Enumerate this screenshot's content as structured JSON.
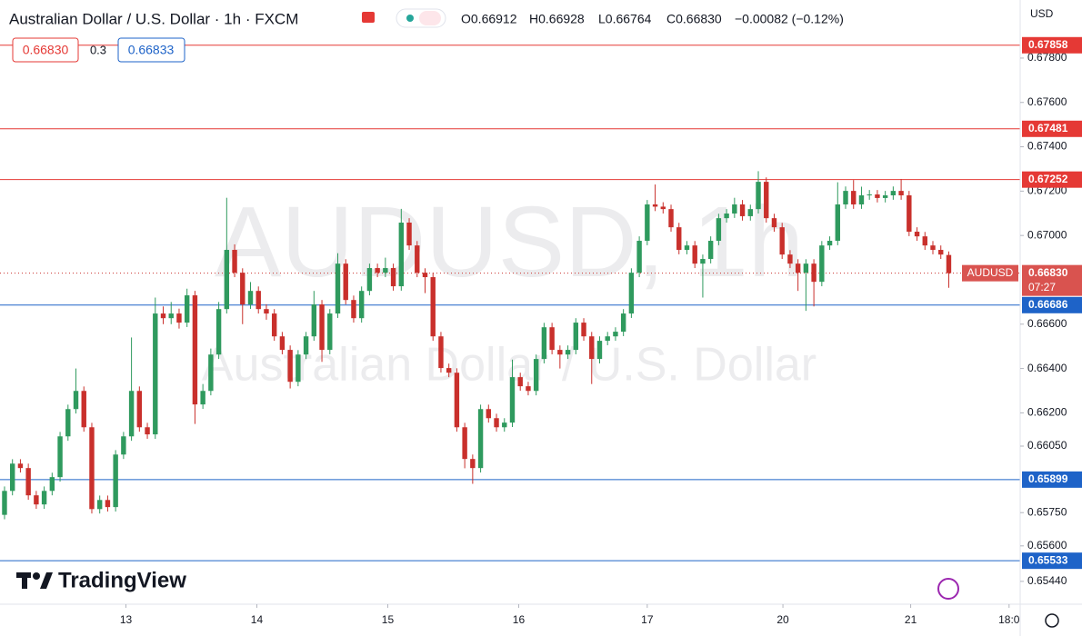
{
  "chart_data": {
    "type": "candlestick",
    "title": "Australian Dollar / U.S. Dollar · 1h · FXCM",
    "ohlc_header": [
      "O0.66912",
      "H0.66928",
      "L0.66764",
      "C0.66830",
      "−0.00082 (−0.12%)"
    ],
    "watermark": [
      "AUDUSD, 1h",
      "Australian Dollar / U.S. Dollar"
    ],
    "sell_price": "0.66830",
    "spread": "0.3",
    "buy_price": "0.66833",
    "currency": "USD",
    "brand": "TradingView",
    "symbol_label": "AUDUSD",
    "countdown": "07:27",
    "current_price": {
      "value": 0.6683,
      "label": "0.66830"
    },
    "up_color": "#2f9a5e",
    "down_color": "#c9302c",
    "candles": [
      [
        0.6574,
        0.65868,
        0.6572,
        0.65848
      ],
      [
        0.65848,
        0.65991,
        0.65828,
        0.65971
      ],
      [
        0.65971,
        0.65991,
        0.65931,
        0.65951
      ],
      [
        0.65951,
        0.65971,
        0.65808,
        0.65828
      ],
      [
        0.65828,
        0.65848,
        0.65767,
        0.65787
      ],
      [
        0.65787,
        0.65868,
        0.65767,
        0.65848
      ],
      [
        0.65848,
        0.6593,
        0.65828,
        0.6591
      ],
      [
        0.6591,
        0.66114,
        0.6589,
        0.66094
      ],
      [
        0.66094,
        0.66237,
        0.66074,
        0.66217
      ],
      [
        0.66217,
        0.664,
        0.66197,
        0.66299
      ],
      [
        0.66299,
        0.66319,
        0.66115,
        0.66135
      ],
      [
        0.66135,
        0.66155,
        0.65746,
        0.65766
      ],
      [
        0.65766,
        0.65827,
        0.65746,
        0.65807
      ],
      [
        0.65807,
        0.65827,
        0.65755,
        0.65775
      ],
      [
        0.65775,
        0.66032,
        0.65755,
        0.66012
      ],
      [
        0.66012,
        0.66114,
        0.65992,
        0.66094
      ],
      [
        0.66094,
        0.6654,
        0.66074,
        0.66299
      ],
      [
        0.66299,
        0.66319,
        0.66115,
        0.66135
      ],
      [
        0.66135,
        0.66155,
        0.66083,
        0.66103
      ],
      [
        0.66103,
        0.6672,
        0.66083,
        0.66648
      ],
      [
        0.66648,
        0.6668,
        0.666,
        0.66627
      ],
      [
        0.66627,
        0.667,
        0.666,
        0.66648
      ],
      [
        0.66648,
        0.6667,
        0.6658,
        0.66607
      ],
      [
        0.66607,
        0.6676,
        0.66587,
        0.6673
      ],
      [
        0.6673,
        0.6675,
        0.6615,
        0.66238
      ],
      [
        0.66238,
        0.6633,
        0.66218,
        0.66299
      ],
      [
        0.66299,
        0.6649,
        0.66279,
        0.66463
      ],
      [
        0.66463,
        0.667,
        0.66443,
        0.66668
      ],
      [
        0.66668,
        0.6717,
        0.66648,
        0.66935
      ],
      [
        0.66935,
        0.6696,
        0.66812,
        0.66832
      ],
      [
        0.66832,
        0.66852,
        0.666,
        0.66689
      ],
      [
        0.66689,
        0.6679,
        0.66669,
        0.6675
      ],
      [
        0.6675,
        0.6677,
        0.66648,
        0.66668
      ],
      [
        0.66668,
        0.6669,
        0.6662,
        0.66648
      ],
      [
        0.66648,
        0.66668,
        0.66525,
        0.66545
      ],
      [
        0.66545,
        0.66565,
        0.66464,
        0.66484
      ],
      [
        0.66484,
        0.66504,
        0.6631,
        0.6634
      ],
      [
        0.6634,
        0.66483,
        0.6632,
        0.66463
      ],
      [
        0.66463,
        0.66565,
        0.66443,
        0.66545
      ],
      [
        0.66545,
        0.6675,
        0.66525,
        0.66689
      ],
      [
        0.66689,
        0.66709,
        0.6643,
        0.66484
      ],
      [
        0.66484,
        0.66668,
        0.66464,
        0.66648
      ],
      [
        0.66648,
        0.6692,
        0.66628,
        0.66873
      ],
      [
        0.66873,
        0.66893,
        0.66689,
        0.66709
      ],
      [
        0.66709,
        0.66729,
        0.66607,
        0.66627
      ],
      [
        0.66627,
        0.6677,
        0.66607,
        0.6675
      ],
      [
        0.6675,
        0.66873,
        0.6673,
        0.66853
      ],
      [
        0.66853,
        0.66873,
        0.66812,
        0.66832
      ],
      [
        0.66832,
        0.669,
        0.66812,
        0.66853
      ],
      [
        0.66853,
        0.66873,
        0.66751,
        0.66771
      ],
      [
        0.66771,
        0.6712,
        0.66751,
        0.67058
      ],
      [
        0.67058,
        0.67078,
        0.66935,
        0.66955
      ],
      [
        0.66955,
        0.66975,
        0.66812,
        0.66832
      ],
      [
        0.66832,
        0.66852,
        0.6674,
        0.66812
      ],
      [
        0.66812,
        0.66832,
        0.66525,
        0.66545
      ],
      [
        0.66545,
        0.66565,
        0.66382,
        0.66402
      ],
      [
        0.66402,
        0.66422,
        0.66361,
        0.66381
      ],
      [
        0.66381,
        0.66401,
        0.66115,
        0.66135
      ],
      [
        0.66135,
        0.66155,
        0.6595,
        0.65992
      ],
      [
        0.65992,
        0.66012,
        0.6588,
        0.65951
      ],
      [
        0.65951,
        0.66237,
        0.65931,
        0.66217
      ],
      [
        0.66217,
        0.66237,
        0.66156,
        0.66176
      ],
      [
        0.66176,
        0.66196,
        0.66115,
        0.66135
      ],
      [
        0.66135,
        0.66176,
        0.66115,
        0.66156
      ],
      [
        0.66156,
        0.6644,
        0.66136,
        0.66361
      ],
      [
        0.66361,
        0.66381,
        0.663,
        0.6632
      ],
      [
        0.6632,
        0.6634,
        0.66279,
        0.66299
      ],
      [
        0.66299,
        0.66463,
        0.66279,
        0.66443
      ],
      [
        0.66443,
        0.66606,
        0.66423,
        0.66586
      ],
      [
        0.66586,
        0.66606,
        0.66464,
        0.66484
      ],
      [
        0.66484,
        0.66504,
        0.664,
        0.66463
      ],
      [
        0.66463,
        0.66504,
        0.66443,
        0.66484
      ],
      [
        0.66484,
        0.66627,
        0.66464,
        0.66607
      ],
      [
        0.66607,
        0.66627,
        0.66525,
        0.66545
      ],
      [
        0.66545,
        0.66565,
        0.6633,
        0.66443
      ],
      [
        0.66443,
        0.66545,
        0.66423,
        0.66525
      ],
      [
        0.66525,
        0.66565,
        0.66505,
        0.66545
      ],
      [
        0.66545,
        0.66586,
        0.66525,
        0.66566
      ],
      [
        0.66566,
        0.66668,
        0.66546,
        0.66648
      ],
      [
        0.66648,
        0.66852,
        0.66628,
        0.66832
      ],
      [
        0.66832,
        0.66996,
        0.66812,
        0.66976
      ],
      [
        0.66976,
        0.6716,
        0.66956,
        0.6714
      ],
      [
        0.6714,
        0.6723,
        0.6711,
        0.6713
      ],
      [
        0.6713,
        0.6715,
        0.67099,
        0.67119
      ],
      [
        0.67119,
        0.67139,
        0.67017,
        0.67037
      ],
      [
        0.67037,
        0.67057,
        0.66915,
        0.66935
      ],
      [
        0.66935,
        0.66975,
        0.66915,
        0.66955
      ],
      [
        0.66955,
        0.66975,
        0.66853,
        0.66873
      ],
      [
        0.66873,
        0.66914,
        0.6672,
        0.66894
      ],
      [
        0.66894,
        0.66996,
        0.66874,
        0.66976
      ],
      [
        0.66976,
        0.67098,
        0.66956,
        0.67078
      ],
      [
        0.67078,
        0.67119,
        0.67058,
        0.67099
      ],
      [
        0.67099,
        0.6717,
        0.67079,
        0.6714
      ],
      [
        0.6714,
        0.6716,
        0.67067,
        0.67087
      ],
      [
        0.67087,
        0.67139,
        0.67067,
        0.67119
      ],
      [
        0.67119,
        0.6729,
        0.67099,
        0.67242
      ],
      [
        0.67242,
        0.67262,
        0.67058,
        0.67078
      ],
      [
        0.67078,
        0.67098,
        0.67017,
        0.67037
      ],
      [
        0.67037,
        0.67057,
        0.66894,
        0.66914
      ],
      [
        0.66914,
        0.66934,
        0.66853,
        0.66873
      ],
      [
        0.66873,
        0.66893,
        0.6675,
        0.66832
      ],
      [
        0.66832,
        0.66893,
        0.6666,
        0.66873
      ],
      [
        0.66873,
        0.66893,
        0.6668,
        0.66791
      ],
      [
        0.66791,
        0.66975,
        0.66771,
        0.66955
      ],
      [
        0.66955,
        0.66996,
        0.66935,
        0.66976
      ],
      [
        0.66976,
        0.6724,
        0.66956,
        0.6714
      ],
      [
        0.6714,
        0.67221,
        0.6712,
        0.67201
      ],
      [
        0.67201,
        0.6725,
        0.6712,
        0.6714
      ],
      [
        0.6714,
        0.6722,
        0.6712,
        0.67181
      ],
      [
        0.67181,
        0.67205,
        0.67161,
        0.67185
      ],
      [
        0.67185,
        0.67205,
        0.67149,
        0.67169
      ],
      [
        0.67169,
        0.67201,
        0.67149,
        0.67181
      ],
      [
        0.67181,
        0.67221,
        0.67161,
        0.67201
      ],
      [
        0.67201,
        0.67255,
        0.67161,
        0.67181
      ],
      [
        0.67181,
        0.67201,
        0.66997,
        0.67017
      ],
      [
        0.67017,
        0.67037,
        0.66976,
        0.66996
      ],
      [
        0.66996,
        0.67016,
        0.66935,
        0.66955
      ],
      [
        0.66955,
        0.66975,
        0.66915,
        0.66935
      ],
      [
        0.66935,
        0.66955,
        0.66894,
        0.66914
      ],
      [
        0.66912,
        0.66928,
        0.66764,
        0.6683
      ]
    ],
    "xlim": [
      -0.57,
      128.0
    ],
    "xticks": [
      {
        "value": 15.3,
        "label": "13"
      },
      {
        "value": 31.8,
        "label": "14"
      },
      {
        "value": 48.3,
        "label": "15"
      },
      {
        "value": 64.8,
        "label": "16"
      },
      {
        "value": 81.0,
        "label": "17"
      },
      {
        "value": 98.1,
        "label": "20"
      },
      {
        "value": 114.2,
        "label": "21"
      },
      {
        "value": 126.6,
        "label": "18:0"
      }
    ],
    "ylim": [
      0.65337,
      0.68062
    ],
    "yticks": [
      {
        "value": 0.678,
        "label": "0.67800"
      },
      {
        "value": 0.676,
        "label": "0.67600"
      },
      {
        "value": 0.674,
        "label": "0.67400"
      },
      {
        "value": 0.672,
        "label": "0.67200"
      },
      {
        "value": 0.67,
        "label": "0.67000"
      },
      {
        "value": 0.666,
        "label": "0.66600"
      },
      {
        "value": 0.664,
        "label": "0.66400"
      },
      {
        "value": 0.662,
        "label": "0.66200"
      },
      {
        "value": 0.6605,
        "label": "0.66050"
      },
      {
        "value": 0.6575,
        "label": "0.65750"
      },
      {
        "value": 0.656,
        "label": "0.65600"
      },
      {
        "value": 0.6544,
        "label": "0.65440"
      }
    ],
    "price_lines": [
      {
        "value": 0.67858,
        "color": "#e53935"
      },
      {
        "value": 0.67481,
        "color": "#e53935"
      },
      {
        "value": 0.67252,
        "color": "#e53935"
      },
      {
        "value": 0.66686,
        "color": "#1e63c8"
      },
      {
        "value": 0.65899,
        "color": "#1e63c8"
      },
      {
        "value": 0.65533,
        "color": "#1e63c8"
      }
    ]
  }
}
